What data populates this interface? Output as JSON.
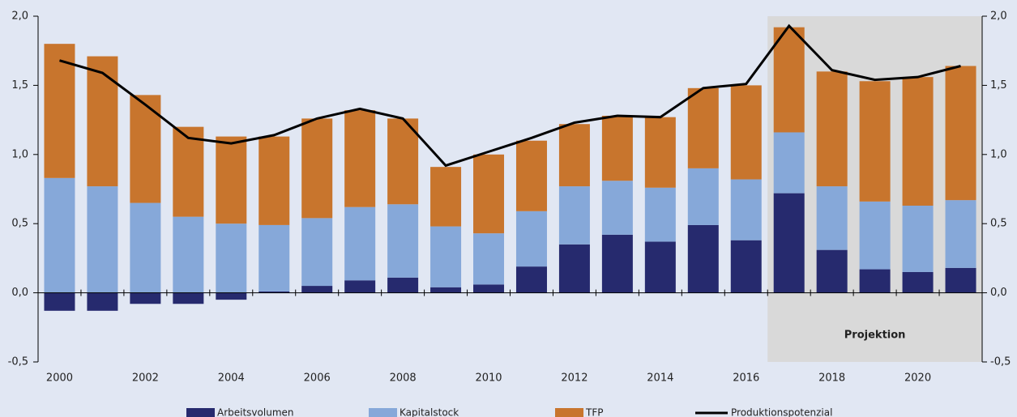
{
  "chart_data": {
    "type": "bar",
    "stacked": true,
    "categories": [
      "2000",
      null,
      "2002",
      null,
      "2004",
      null,
      "2006",
      null,
      "2008",
      null,
      "2010",
      null,
      "2012",
      null,
      "2014",
      null,
      "2016",
      null,
      "2018",
      null,
      "2020",
      null
    ],
    "series": [
      {
        "name": "Arbeitsvolumen",
        "color": "#262a6e",
        "values": [
          -0.13,
          -0.13,
          -0.08,
          -0.08,
          -0.05,
          0.01,
          0.05,
          0.09,
          0.11,
          0.04,
          0.06,
          0.19,
          0.35,
          0.42,
          0.37,
          0.49,
          0.38,
          0.72,
          0.31,
          0.17,
          0.15,
          0.18
        ]
      },
      {
        "name": "Kapitalstock",
        "color": "#86a8d9",
        "values": [
          0.83,
          0.77,
          0.65,
          0.55,
          0.5,
          0.48,
          0.49,
          0.53,
          0.53,
          0.44,
          0.37,
          0.4,
          0.42,
          0.39,
          0.39,
          0.41,
          0.44,
          0.44,
          0.46,
          0.49,
          0.48,
          0.49
        ]
      },
      {
        "name": "TFP",
        "color": "#c8752d",
        "values": [
          0.97,
          0.94,
          0.78,
          0.65,
          0.63,
          0.64,
          0.72,
          0.7,
          0.62,
          0.43,
          0.57,
          0.51,
          0.45,
          0.47,
          0.51,
          0.58,
          0.68,
          0.76,
          0.83,
          0.87,
          0.93,
          0.97
        ]
      },
      {
        "name": "Produktionspotenzial",
        "type": "line",
        "color": "#000000",
        "values": [
          1.68,
          1.59,
          1.36,
          1.12,
          1.08,
          1.14,
          1.26,
          1.33,
          1.26,
          0.92,
          1.02,
          1.12,
          1.23,
          1.28,
          1.27,
          1.48,
          1.51,
          1.93,
          1.61,
          1.54,
          1.56,
          1.64
        ]
      }
    ],
    "ylim": [
      -0.5,
      2.0
    ],
    "yticks": [
      {
        "value": -0.5,
        "label": "-0,5"
      },
      {
        "value": 0,
        "label": "0,0"
      },
      {
        "value": 0.5,
        "label": "0,5"
      },
      {
        "value": 1.0,
        "label": "1,0"
      },
      {
        "value": 1.5,
        "label": "1,5"
      },
      {
        "value": 2.0,
        "label": "2,0"
      }
    ],
    "y2lim": [
      -0.5,
      2.0
    ],
    "y2ticks": [
      {
        "value": -0.5,
        "label": "-0,5"
      },
      {
        "value": 0,
        "label": "0,0"
      },
      {
        "value": 0.5,
        "label": "0,5"
      },
      {
        "value": 1.0,
        "label": "1,0"
      },
      {
        "value": 1.5,
        "label": "1,5"
      },
      {
        "value": 2.0,
        "label": "2,0"
      }
    ],
    "annotation": "Projektion",
    "legend": "bottom"
  }
}
